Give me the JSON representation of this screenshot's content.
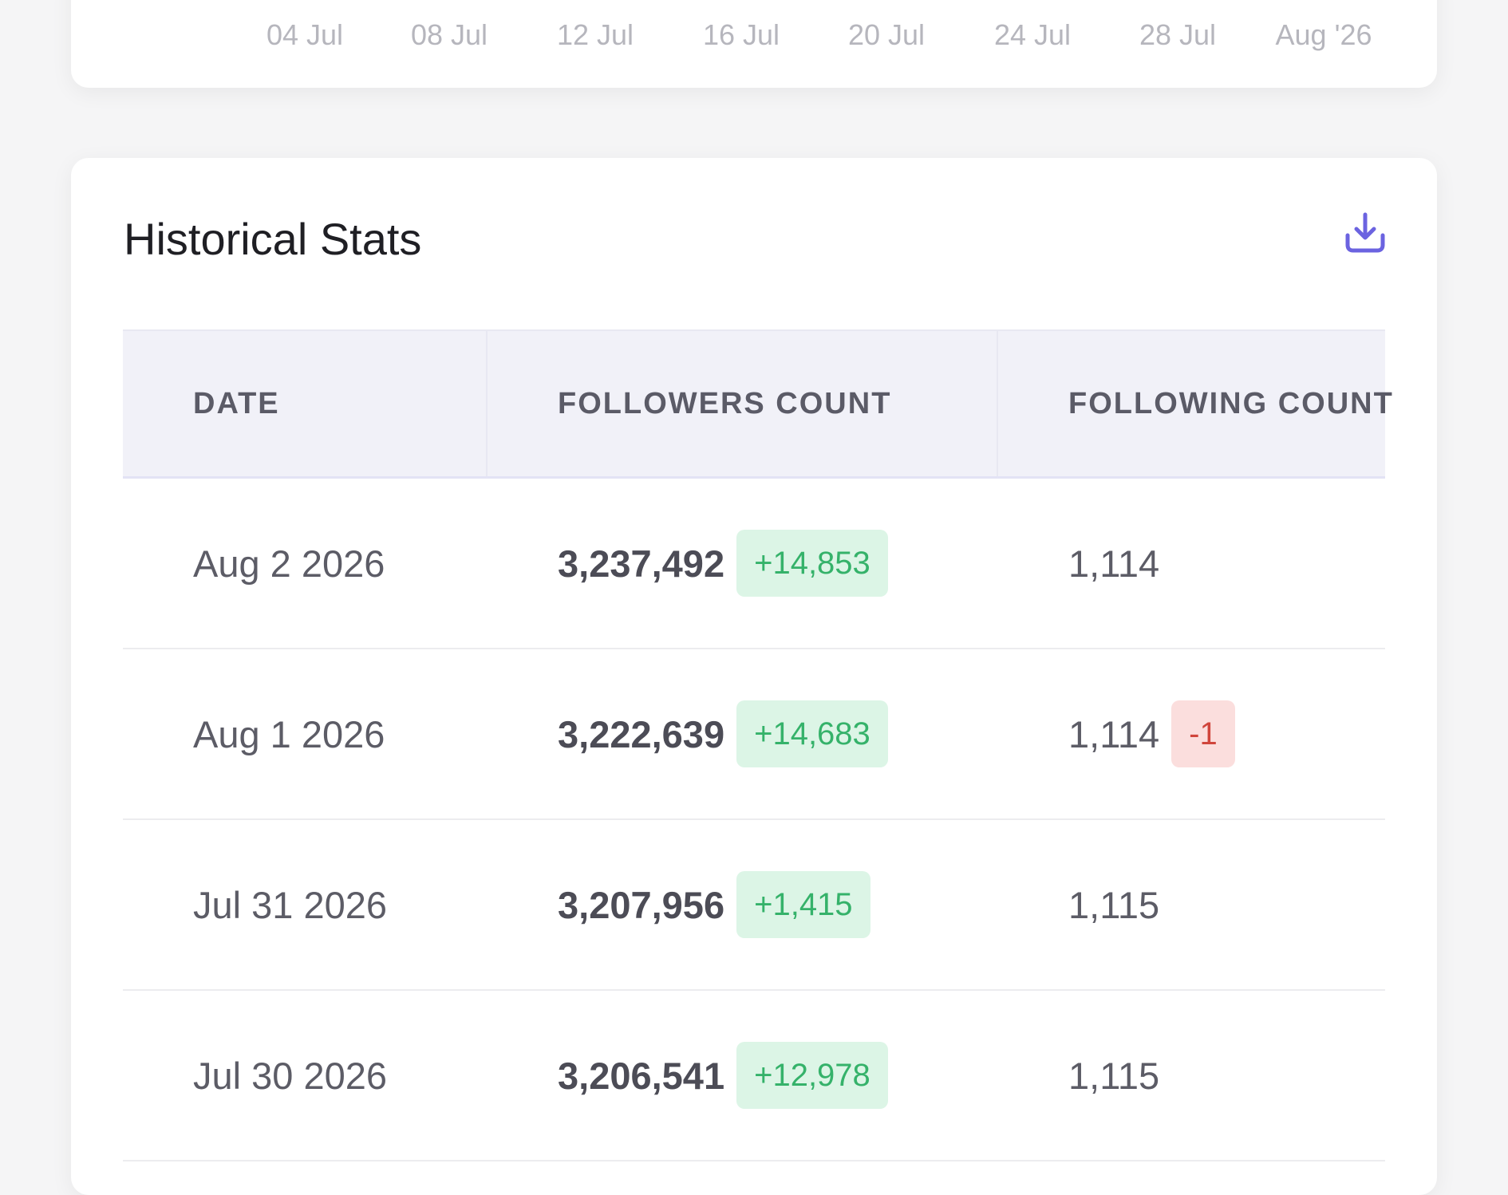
{
  "colors": {
    "accent": "#6b63e0",
    "positive_text": "#35b26a",
    "positive_bg": "#dcf5e6",
    "negative_text": "#d0453c",
    "negative_bg": "#fbdedd"
  },
  "chart_axis": {
    "ticks": [
      "04 Jul",
      "08 Jul",
      "12 Jul",
      "16 Jul",
      "20 Jul",
      "24 Jul",
      "28 Jul",
      "Aug '26"
    ]
  },
  "historical": {
    "title": "Historical Stats",
    "download_icon": "download-icon",
    "columns": {
      "date": "DATE",
      "followers": "FOLLOWERS COUNT",
      "following": "FOLLOWING COUNT"
    },
    "rows": [
      {
        "date": "Aug 2 2026",
        "followers": "3,237,492",
        "followers_delta": "+14,853",
        "following": "1,114",
        "following_delta": ""
      },
      {
        "date": "Aug 1 2026",
        "followers": "3,222,639",
        "followers_delta": "+14,683",
        "following": "1,114",
        "following_delta": "-1"
      },
      {
        "date": "Jul 31 2026",
        "followers": "3,207,956",
        "followers_delta": "+1,415",
        "following": "1,115",
        "following_delta": ""
      },
      {
        "date": "Jul 30 2026",
        "followers": "3,206,541",
        "followers_delta": "+12,978",
        "following": "1,115",
        "following_delta": ""
      }
    ]
  }
}
